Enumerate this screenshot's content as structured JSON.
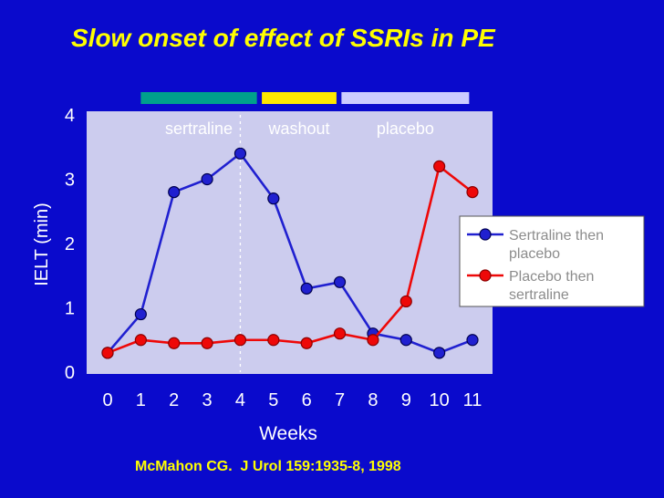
{
  "title": "Slow onset of effect of SSRIs in PE",
  "citation": "McMahon CG.  J Urol 159:1935-8, 1998",
  "colors": {
    "background": "#0a0acc",
    "plot_bg": "#ccccee",
    "title_text": "#ffff00",
    "citation_text": "#ffff00",
    "axis_text": "#ffffff",
    "phase_label_text": "#ffffff",
    "legend_text": "#8c8c8c",
    "legend_bg": "#ffffff",
    "divider_line": "#ffffff"
  },
  "chart_data": {
    "type": "line",
    "title": "Slow onset of effect of SSRIs in PE",
    "x": [
      0,
      1,
      2,
      3,
      4,
      5,
      6,
      7,
      8,
      9,
      10,
      11
    ],
    "series": [
      {
        "name": "Sertraline then placebo",
        "legend_lines": [
          "Sertraline then",
          "placebo"
        ],
        "color": "#2020d0",
        "marker_edge": "#000050",
        "values": [
          0.3,
          0.9,
          2.8,
          3.0,
          3.4,
          2.7,
          1.3,
          1.4,
          0.6,
          0.5,
          0.3,
          0.5
        ]
      },
      {
        "name": "Placebo then sertraline",
        "legend_lines": [
          "Placebo then",
          "sertraline"
        ],
        "color": "#ee0808",
        "marker_edge": "#8b0000",
        "values": [
          0.3,
          0.5,
          0.45,
          0.45,
          0.5,
          0.5,
          0.45,
          0.6,
          0.5,
          1.1,
          3.2,
          2.8
        ]
      }
    ],
    "xlabel": "Weeks",
    "ylabel": "IELT (min)",
    "xlim": [
      0,
      11
    ],
    "ylim": [
      0,
      4
    ],
    "x_ticks": [
      0,
      1,
      2,
      3,
      4,
      5,
      6,
      7,
      8,
      9,
      10,
      11
    ],
    "y_ticks": [
      0,
      1,
      2,
      3,
      4
    ],
    "grid": false,
    "legend": {
      "position": "right"
    },
    "phases": [
      {
        "label": "sertraline",
        "color": "#00a08c",
        "x_start": 1.0,
        "x_end": 4.5
      },
      {
        "label": "washout",
        "color": "#ffe800",
        "x_start": 4.65,
        "x_end": 6.9
      },
      {
        "label": "placebo",
        "color": "#ccccff",
        "x_start": 7.05,
        "x_end": 10.9
      }
    ],
    "dashed_divider_x": 4
  }
}
